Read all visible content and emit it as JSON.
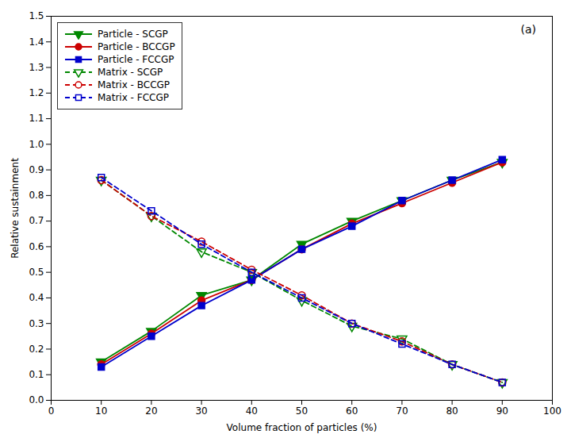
{
  "chart_data": {
    "type": "line",
    "x": [
      10,
      20,
      30,
      40,
      50,
      60,
      70,
      80,
      90
    ],
    "series": [
      {
        "name": "Particle - SCGP",
        "color": "#008800",
        "marker": "triangle-down",
        "line_style": "solid",
        "values": [
          0.15,
          0.27,
          0.41,
          0.47,
          0.61,
          0.7,
          0.78,
          0.86,
          0.93
        ]
      },
      {
        "name": "Particle - BCCGP",
        "color": "#cc0000",
        "marker": "circle",
        "line_style": "solid",
        "values": [
          0.14,
          0.26,
          0.39,
          0.47,
          0.59,
          0.69,
          0.77,
          0.85,
          0.93
        ]
      },
      {
        "name": "Particle - FCCGP",
        "color": "#0000cc",
        "marker": "square",
        "line_style": "solid",
        "values": [
          0.13,
          0.25,
          0.37,
          0.47,
          0.59,
          0.68,
          0.78,
          0.86,
          0.94
        ]
      },
      {
        "name": "Matrix - SCGP",
        "color": "#008800",
        "marker": "triangle-down-open",
        "line_style": "dashed",
        "values": [
          0.86,
          0.72,
          0.58,
          0.5,
          0.39,
          0.29,
          0.24,
          0.14,
          0.07
        ]
      },
      {
        "name": "Matrix - BCCGP",
        "color": "#cc0000",
        "marker": "circle-open",
        "line_style": "dashed",
        "values": [
          0.86,
          0.72,
          0.62,
          0.51,
          0.41,
          0.3,
          0.23,
          0.14,
          0.07
        ]
      },
      {
        "name": "Matrix - FCCGP",
        "color": "#0000cc",
        "marker": "square-open",
        "line_style": "dashed",
        "values": [
          0.87,
          0.74,
          0.61,
          0.5,
          0.4,
          0.3,
          0.22,
          0.14,
          0.07
        ]
      }
    ],
    "xlabel": "Volume fraction of particles (%)",
    "ylabel": "Relative sustainment",
    "annotations": [
      "(a)"
    ],
    "xlim": [
      0,
      100
    ],
    "ylim": [
      0.0,
      1.5
    ],
    "xticks": [
      0,
      10,
      20,
      30,
      40,
      50,
      60,
      70,
      80,
      90,
      100
    ],
    "yticks": [
      {
        "value": 0.0,
        "label": "0.0"
      },
      0.1,
      0.2,
      0.3,
      0.4,
      0.5,
      0.6,
      0.7,
      0.8,
      0.9,
      {
        "value": 1.0,
        "label": "1.0"
      },
      1.1,
      1.2,
      1.3,
      1.4,
      1.5
    ],
    "legend": "upper left",
    "grid": false
  }
}
